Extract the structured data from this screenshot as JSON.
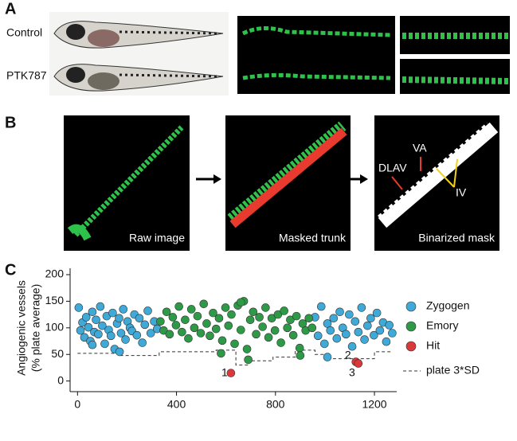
{
  "panels": {
    "a": {
      "label": "A",
      "rows": [
        "Control",
        "PTK787"
      ]
    },
    "b": {
      "label": "B",
      "images": [
        "Raw image",
        "Masked trunk",
        "Binarized mask"
      ],
      "annotations": [
        "DLAV",
        "VA",
        "IV"
      ]
    },
    "c": {
      "label": "C"
    }
  },
  "chart_data": {
    "type": "scatter",
    "ylabel": [
      "Angiogenic vessels",
      "(% plate average)"
    ],
    "xlim": [
      -30,
      1290
    ],
    "ylim": [
      -20,
      212
    ],
    "xticks": [
      0,
      400,
      800,
      1200
    ],
    "yticks": [
      0,
      50,
      100,
      150,
      200
    ],
    "grid": false,
    "series": [
      {
        "name": "Zygogen",
        "color": "#3fa9d8",
        "x": [
          5,
          12,
          20,
          28,
          35,
          44,
          52,
          60,
          68,
          75,
          84,
          92,
          100,
          110,
          118,
          126,
          135,
          142,
          150,
          160,
          168,
          176,
          185,
          194,
          202,
          212,
          220,
          230,
          240,
          250,
          262,
          272,
          284,
          296,
          310,
          322,
          960,
          972,
          985,
          998,
          1010,
          1022,
          1035,
          1048,
          1060,
          1072,
          1085,
          1098,
          1110,
          1122,
          1135,
          1148,
          1160,
          1172,
          1185,
          1198,
          1210,
          1222,
          1235,
          1248,
          1260,
          1272,
          1010,
          170,
          60
        ],
        "values": [
          138,
          95,
          110,
          82,
          120,
          101,
          75,
          130,
          92,
          115,
          88,
          140,
          104,
          70,
          122,
          96,
          85,
          128,
          60,
          108,
          118,
          90,
          135,
          78,
          112,
          100,
          94,
          125,
          86,
          118,
          72,
          106,
          132,
          90,
          112,
          98,
          120,
          85,
          140,
          70,
          108,
          95,
          118,
          80,
          130,
          100,
          88,
          125,
          65,
          112,
          92,
          138,
          78,
          104,
          118,
          86,
          128,
          95,
          110,
          74,
          105,
          90,
          45,
          55,
          68
        ]
      },
      {
        "name": "Emory",
        "color": "#2e9a48",
        "x": [
          335,
          348,
          360,
          372,
          385,
          398,
          410,
          422,
          435,
          448,
          460,
          472,
          485,
          498,
          510,
          522,
          535,
          548,
          560,
          572,
          585,
          598,
          610,
          622,
          635,
          648,
          660,
          672,
          685,
          698,
          710,
          722,
          735,
          748,
          760,
          772,
          785,
          798,
          810,
          822,
          835,
          848,
          860,
          872,
          885,
          898,
          910,
          922,
          935,
          948,
          690,
          580,
          900,
          660
        ],
        "values": [
          112,
          95,
          130,
          88,
          120,
          105,
          140,
          92,
          115,
          80,
          135,
          100,
          122,
          90,
          145,
          108,
          85,
          128,
          98,
          118,
          76,
          138,
          104,
          125,
          70,
          142,
          96,
          150,
          60,
          115,
          130,
          88,
          120,
          102,
          138,
          82,
          118,
          95,
          125,
          72,
          132,
          100,
          115,
          86,
          122,
          62,
          108,
          95,
          118,
          100,
          40,
          52,
          48,
          148
        ]
      },
      {
        "name": "Hit",
        "color": "#d9393b",
        "x": [
          620,
          1125,
          1135
        ],
        "values": [
          15,
          36,
          33
        ],
        "point_labels": [
          "1",
          "2",
          "3"
        ]
      },
      {
        "name": "plate 3*SD",
        "type": "line",
        "dash": true,
        "color": "#333333",
        "x": [
          0,
          170,
          170,
          330,
          330,
          560,
          560,
          640,
          640,
          690,
          690,
          790,
          790,
          880,
          880,
          960,
          960,
          1010,
          1010,
          1200,
          1200,
          1270
        ],
        "values": [
          52,
          52,
          48,
          48,
          55,
          55,
          58,
          58,
          30,
          30,
          38,
          38,
          45,
          45,
          58,
          58,
          50,
          50,
          42,
          42,
          55,
          55
        ]
      }
    ]
  }
}
